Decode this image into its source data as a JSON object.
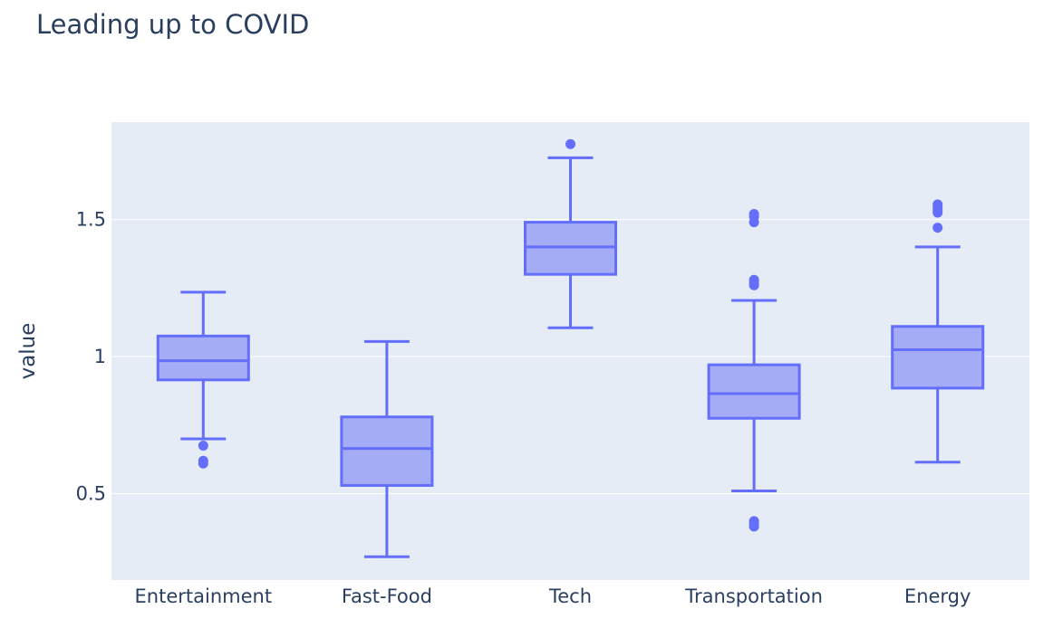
{
  "chart_data": {
    "type": "box",
    "title": "Leading up to COVID",
    "xlabel": "",
    "ylabel": "value",
    "ylim": [
      0.185,
      1.855
    ],
    "yticks": [
      0.5,
      1,
      1.5
    ],
    "ytick_labels": [
      "0.5",
      "1",
      "1.5"
    ],
    "grid": true,
    "colors": {
      "plot_bg": "#e5ecf6",
      "box_line": "#636efa",
      "box_fill": "#a5acf6",
      "grid": "#ffffff",
      "text": "#2a3f5f"
    },
    "categories": [
      "Entertainment",
      "Fast-Food",
      "Tech",
      "Transportation",
      "Energy"
    ],
    "boxes": [
      {
        "category": "Entertainment",
        "lower_fence": 0.7,
        "q1": 0.915,
        "median": 0.985,
        "q3": 1.075,
        "upper_fence": 1.235,
        "outliers": [
          0.675,
          0.62,
          0.61
        ]
      },
      {
        "category": "Fast-Food",
        "lower_fence": 0.27,
        "q1": 0.53,
        "median": 0.665,
        "q3": 0.78,
        "upper_fence": 1.055,
        "outliers": []
      },
      {
        "category": "Tech",
        "lower_fence": 1.105,
        "q1": 1.3,
        "median": 1.4,
        "q3": 1.49,
        "upper_fence": 1.725,
        "outliers": [
          1.775
        ]
      },
      {
        "category": "Transportation",
        "lower_fence": 0.51,
        "q1": 0.775,
        "median": 0.865,
        "q3": 0.97,
        "upper_fence": 1.205,
        "outliers": [
          1.52,
          1.51,
          1.49,
          1.28,
          1.27,
          1.26,
          0.4,
          0.39,
          0.38
        ]
      },
      {
        "category": "Energy",
        "lower_fence": 0.615,
        "q1": 0.885,
        "median": 1.025,
        "q3": 1.11,
        "upper_fence": 1.4,
        "outliers": [
          1.555,
          1.545,
          1.535,
          1.525,
          1.47
        ]
      }
    ]
  }
}
